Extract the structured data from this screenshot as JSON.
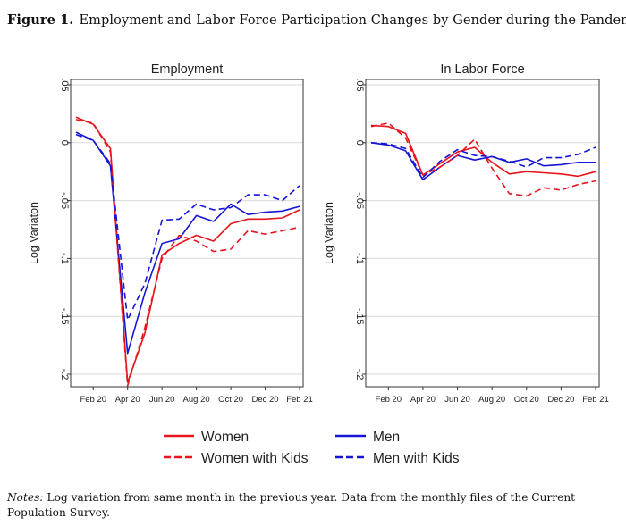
{
  "figure": {
    "label": "Figure 1.",
    "title": "Employment and Labor Force Participation Changes by Gender during the Pandemic"
  },
  "notes": {
    "label": "Notes:",
    "text": "Log variation from same month in the previous year. Data from the monthly files of the Current Population Survey."
  },
  "legend": [
    {
      "name": "Women",
      "color": "#e8141c",
      "dashed": false
    },
    {
      "name": "Men",
      "color": "#1515d6",
      "dashed": false
    },
    {
      "name": "Women with Kids",
      "color": "#e8141c",
      "dashed": true
    },
    {
      "name": "Men with Kids",
      "color": "#1515d6",
      "dashed": true
    }
  ],
  "chart_data": [
    {
      "type": "line",
      "title": "Employment",
      "ylabel": "Log Variaton",
      "xlabel": "",
      "ylim": [
        -0.21,
        0.055
      ],
      "yticks": [
        0.05,
        0,
        -0.05,
        -0.1,
        -0.15,
        -0.2
      ],
      "yticklabels": [
        ".05",
        "0",
        "-.05",
        "-.1",
        "-.15",
        "-.2"
      ],
      "x": [
        "Jan 20",
        "Feb 20",
        "Mar 20",
        "Apr 20",
        "May 20",
        "Jun 20",
        "Jul 20",
        "Aug 20",
        "Sep 20",
        "Oct 20",
        "Nov 20",
        "Dec 20",
        "Jan 21",
        "Feb 21"
      ],
      "xticks": [
        "Feb 20",
        "Apr 20",
        "Jun 20",
        "Aug 20",
        "Oct 20",
        "Dec 20",
        "Feb 21"
      ],
      "series": [
        {
          "name": "Women",
          "values": [
            0.022,
            0.016,
            -0.005,
            -0.207,
            -0.165,
            -0.097,
            -0.087,
            -0.08,
            -0.085,
            -0.07,
            -0.066,
            -0.066,
            -0.065,
            -0.058
          ]
        },
        {
          "name": "Women with Kids",
          "values": [
            0.02,
            0.017,
            -0.008,
            -0.21,
            -0.16,
            -0.1,
            -0.08,
            -0.085,
            -0.094,
            -0.092,
            -0.076,
            -0.079,
            -0.076,
            -0.073
          ]
        },
        {
          "name": "Men",
          "values": [
            0.009,
            0.002,
            -0.02,
            -0.182,
            -0.13,
            -0.087,
            -0.083,
            -0.063,
            -0.068,
            -0.053,
            -0.062,
            -0.06,
            -0.059,
            -0.055
          ]
        },
        {
          "name": "Men with Kids",
          "values": [
            0.007,
            0.002,
            -0.018,
            -0.153,
            -0.122,
            -0.067,
            -0.066,
            -0.053,
            -0.058,
            -0.056,
            -0.045,
            -0.045,
            -0.05,
            -0.037
          ]
        }
      ]
    },
    {
      "type": "line",
      "title": "In Labor Force",
      "ylabel": "Log Variaton",
      "xlabel": "",
      "ylim": [
        -0.21,
        0.055
      ],
      "yticks": [
        0.05,
        0,
        -0.05,
        -0.1,
        -0.15,
        -0.2
      ],
      "yticklabels": [
        ".05",
        "0",
        "-.05",
        "-.1",
        "-.15",
        "-.2"
      ],
      "x": [
        "Jan 20",
        "Feb 20",
        "Mar 20",
        "Apr 20",
        "May 20",
        "Jun 20",
        "Jul 20",
        "Aug 20",
        "Sep 20",
        "Oct 20",
        "Nov 20",
        "Dec 20",
        "Jan 21",
        "Feb 21"
      ],
      "xticks": [
        "Feb 20",
        "Apr 20",
        "Jun 20",
        "Aug 20",
        "Oct 20",
        "Dec 20",
        "Feb 21"
      ],
      "series": [
        {
          "name": "Women",
          "values": [
            0.015,
            0.014,
            0.008,
            -0.028,
            -0.018,
            -0.008,
            -0.004,
            -0.017,
            -0.027,
            -0.025,
            -0.026,
            -0.027,
            -0.029,
            -0.025
          ]
        },
        {
          "name": "Women with Kids",
          "values": [
            0.014,
            0.017,
            0.004,
            -0.028,
            -0.021,
            -0.011,
            0.003,
            -0.022,
            -0.044,
            -0.046,
            -0.039,
            -0.041,
            -0.036,
            -0.033
          ]
        },
        {
          "name": "Men",
          "values": [
            0.0,
            -0.002,
            -0.007,
            -0.032,
            -0.021,
            -0.011,
            -0.015,
            -0.012,
            -0.017,
            -0.014,
            -0.02,
            -0.019,
            -0.017,
            -0.017
          ]
        },
        {
          "name": "Men with Kids",
          "values": [
            0.0,
            -0.001,
            -0.005,
            -0.03,
            -0.016,
            -0.006,
            -0.011,
            -0.012,
            -0.016,
            -0.021,
            -0.013,
            -0.013,
            -0.01,
            -0.004
          ]
        }
      ]
    }
  ]
}
